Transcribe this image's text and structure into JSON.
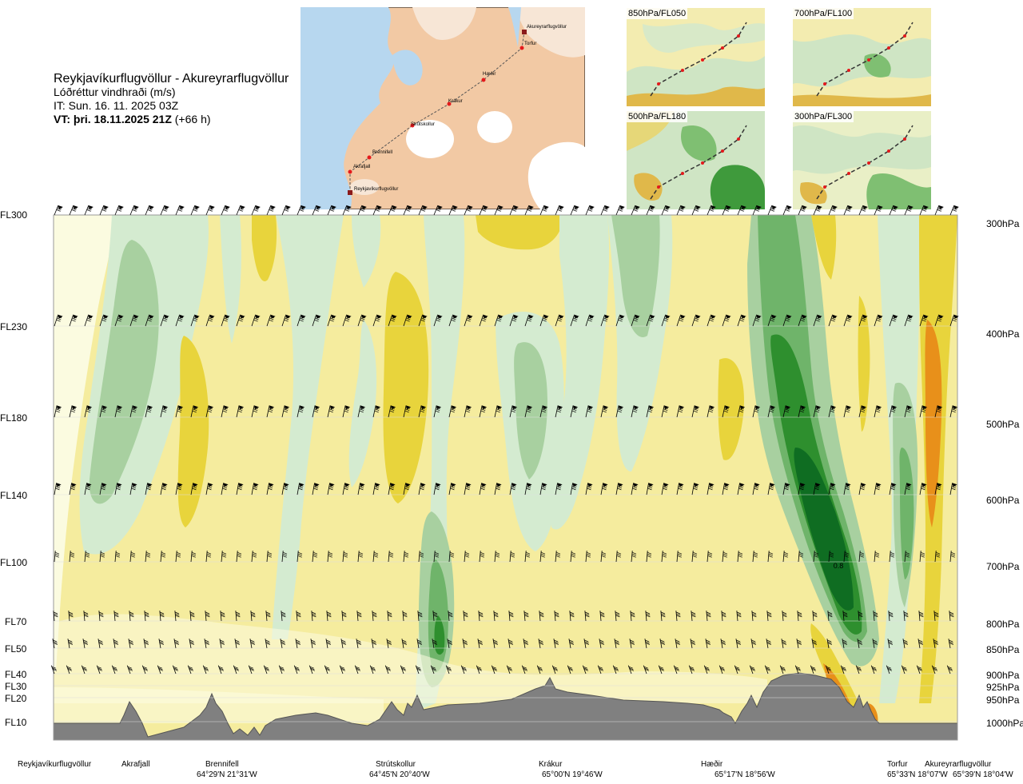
{
  "title": {
    "route": "Reykjavíkurflugvöllur - Akureyrarflugvöllur",
    "parameter": "Lóðréttur vindhraði (m/s)",
    "initial_time": "IT: Sun. 16. 11. 2025 03Z",
    "valid_time": "VT: þri. 18.11.2025 21Z",
    "lead_time": "(+66 h)"
  },
  "route_map": {
    "points": [
      "Reykjavíkurflugvöllur",
      "Akrafjall",
      "Brennifell",
      "Strútskollur",
      "Krákur",
      "Hæðir",
      "Torfur",
      "Akureyrarflugvöllur"
    ]
  },
  "minimaps": [
    {
      "label": "850hPa/FL050"
    },
    {
      "label": "700hPa/FL100"
    },
    {
      "label": "500hPa/FL180"
    },
    {
      "label": "300hPa/FL300"
    }
  ],
  "flight_levels": [
    "FL300",
    "FL230",
    "FL180",
    "FL140",
    "FL100",
    "FL70",
    "FL50",
    "FL40",
    "FL30",
    "FL20",
    "FL10"
  ],
  "pressure_levels": [
    "300hPa",
    "400hPa",
    "500hPa",
    "600hPa",
    "700hPa",
    "800hPa",
    "850hPa",
    "900hPa",
    "925hPa",
    "950hPa",
    "1000hPa"
  ],
  "waypoints": [
    {
      "name": "Reykjavíkurflugvöllur",
      "coord": ""
    },
    {
      "name": "Akrafjall",
      "coord": ""
    },
    {
      "name": "Brennifell",
      "coord": "64°29'N 21°31'W"
    },
    {
      "name": "Strútskollur",
      "coord": "64°45'N 20°40'W"
    },
    {
      "name": "Krákur",
      "coord": "65°00'N 19°46'W"
    },
    {
      "name": "Hæðir",
      "coord": "65°17'N 18°56'W"
    },
    {
      "name": "Torfur",
      "coord": "65°33'N 18°07'W"
    },
    {
      "name": "Akureyrarflugvöllur",
      "coord": "65°39'N 18°04'W"
    }
  ],
  "chart_data": {
    "type": "heatmap",
    "title": "Lóðréttur vindhraði (m/s)",
    "x_axis": "route distance from Reykjavíkurflugvöllur to Akureyrarflugvöllur",
    "y_axis_left": [
      "FL300",
      "FL230",
      "FL180",
      "FL140",
      "FL100",
      "FL70",
      "FL50",
      "FL40",
      "FL30",
      "FL20",
      "FL10"
    ],
    "y_axis_right": [
      "300hPa",
      "400hPa",
      "500hPa",
      "600hPa",
      "700hPa",
      "800hPa",
      "850hPa",
      "900hPa",
      "925hPa",
      "950hPa",
      "1000hPa"
    ],
    "contour_label": "0.8",
    "colors": {
      "strong_down": "#e8901a",
      "mod_down": "#e8d43c",
      "weak_down": "#f5ec9e",
      "neutral": "#fbfbe0",
      "weak_up": "#d4ebd0",
      "mod_up": "#a8d0a0",
      "strong_up": "#6fb46a",
      "very_strong_up": "#2e8f2e",
      "max_up": "#0f6d22",
      "terrain": "#808080"
    },
    "features": [
      {
        "kind": "updraft",
        "location": "near Hæðir-Torfur",
        "level": "FL100-FL230",
        "value": 0.8
      },
      {
        "kind": "downdraft",
        "location": "near Torfur-Akureyrarflugvöllur",
        "level": "FL30-FL300"
      },
      {
        "kind": "updraft",
        "location": "near Strútskollur",
        "level": "FL40-FL100"
      }
    ],
    "grid": true
  }
}
